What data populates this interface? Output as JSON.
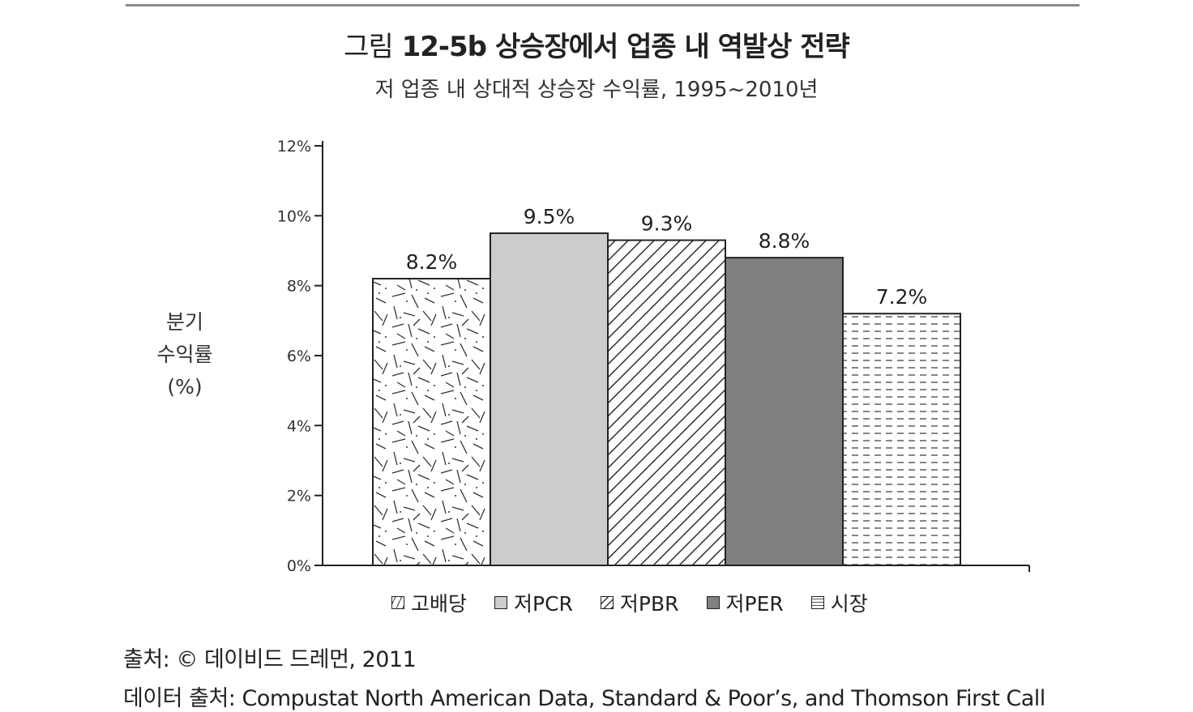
{
  "header": {
    "title_prefix": "그림",
    "title_main": "12-5b  상승장에서 업종 내 역발상 전략",
    "subtitle": "저 업종 내 상대적 상승장 수익률, 1995~2010년"
  },
  "chart_data": {
    "type": "bar",
    "title": "그림 12-5b  상승장에서 업종 내 역발상 전략",
    "subtitle": "저 업종 내 상대적 상승장 수익률, 1995~2010년",
    "ylabel_lines": [
      "분기",
      "수익률",
      "(%)"
    ],
    "xlabel": "",
    "ylim": [
      0,
      12
    ],
    "yticks": [
      "0%",
      "2%",
      "4%",
      "6%",
      "8%",
      "10%",
      "12%"
    ],
    "ytick_values": [
      0,
      2,
      4,
      6,
      8,
      10,
      12
    ],
    "categories": [
      "고배당",
      "저PCR",
      "저PBR",
      "저PER",
      "시장"
    ],
    "values": [
      8.2,
      9.5,
      9.3,
      8.8,
      7.2
    ],
    "data_labels": [
      "8.2%",
      "9.5%",
      "9.3%",
      "8.8%",
      "7.2%"
    ],
    "patterns": [
      "random-dashes",
      "solid-light-gray",
      "diagonal-hatch",
      "solid-dark-gray",
      "horizontal-dashes"
    ],
    "colors": [
      "#ffffff",
      "#cccccc",
      "#ffffff",
      "#808080",
      "#ffffff"
    ],
    "grid": false,
    "legend_position": "bottom"
  },
  "legend": {
    "items": [
      {
        "label": "고배당"
      },
      {
        "label": "저PCR"
      },
      {
        "label": "저PBR"
      },
      {
        "label": "저PER"
      },
      {
        "label": "시장"
      }
    ]
  },
  "source": {
    "line1": "출처: © 데이비드 드레먼, 2011",
    "line2": "데이터 출처: Compustat North American Data, Standard & Poor’s, and Thomson First Call"
  }
}
